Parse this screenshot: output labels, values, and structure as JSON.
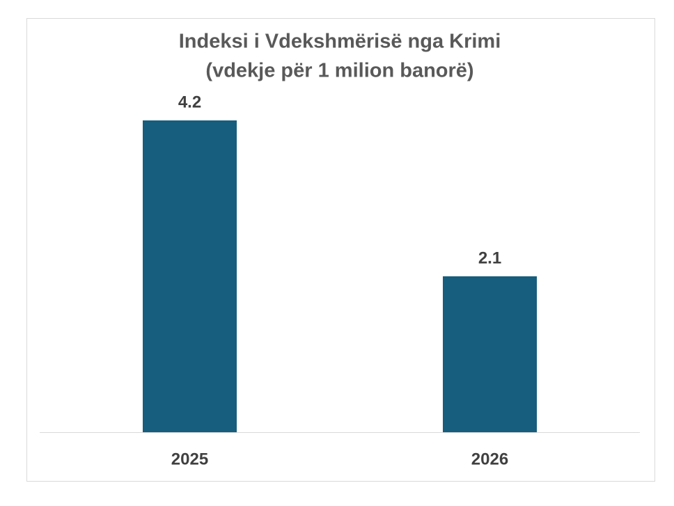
{
  "chart_data": {
    "type": "bar",
    "title": "Indeksi i Vdekshmërisë nga Krimi",
    "subtitle": "(vdekje për 1 milion banorë)",
    "categories": [
      "2025",
      "2026"
    ],
    "values": [
      4.2,
      2.1
    ],
    "color": "#175e7e",
    "ylim": [
      0,
      4.5
    ],
    "grid": false
  }
}
